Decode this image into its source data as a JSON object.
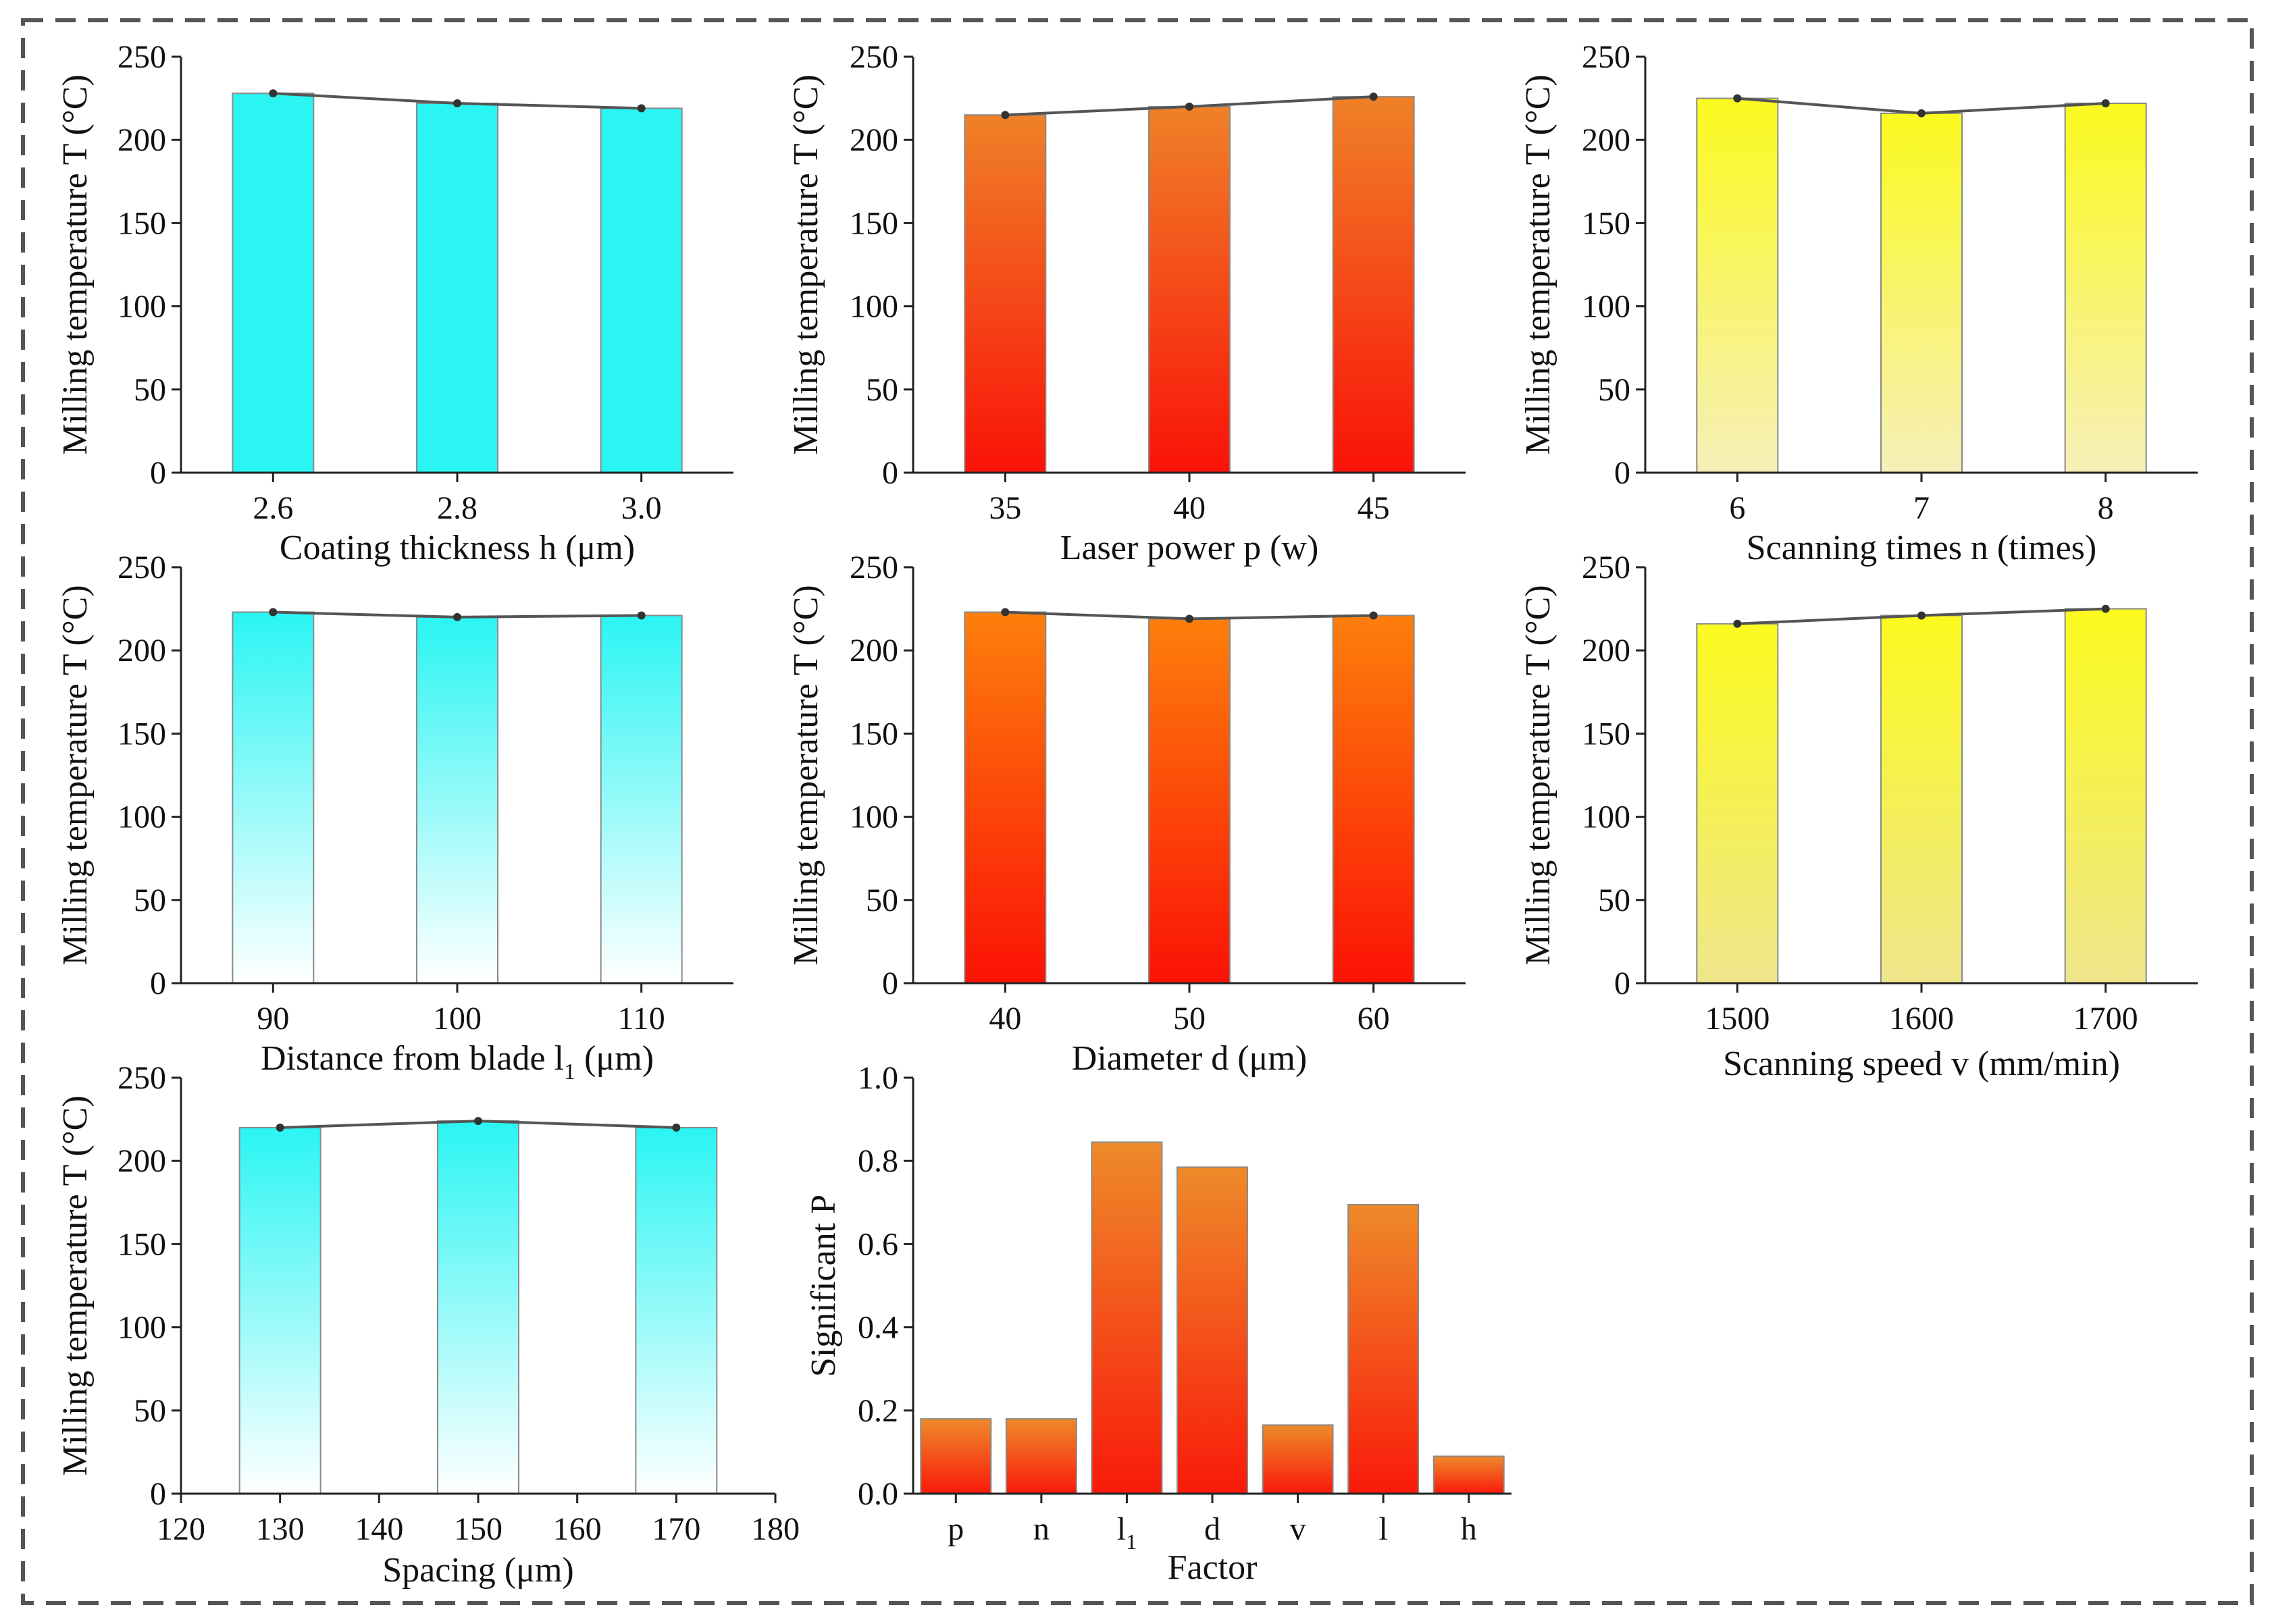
{
  "chart_data": [
    {
      "id": "coating",
      "type": "bar",
      "ylabel": "Milling temperature T (°C)",
      "xlabel_parts": [
        "Coating thickness h (μm)"
      ],
      "categories": [
        "2.6",
        "2.8",
        "3.0"
      ],
      "x": [
        2.6,
        2.8,
        3.0
      ],
      "values": [
        228,
        222,
        219
      ],
      "line": [
        228,
        222,
        219
      ],
      "ylim": [
        0,
        250
      ],
      "yticks": [
        0,
        50,
        100,
        150,
        200,
        250
      ],
      "style": "cyan_solid",
      "colors": {
        "top": "#2af5f3",
        "bottom": "#2af5f3",
        "border": "#8a8a8a",
        "line": "#555555"
      }
    },
    {
      "id": "laser",
      "type": "bar",
      "ylabel": "Milling temperature T (°C)",
      "xlabel_parts": [
        "Laser power p (w)"
      ],
      "categories": [
        "35",
        "40",
        "45"
      ],
      "x": [
        35,
        40,
        45
      ],
      "values": [
        215,
        220,
        226
      ],
      "line": [
        215,
        220,
        226
      ],
      "ylim": [
        0,
        250
      ],
      "yticks": [
        0,
        50,
        100,
        150,
        200,
        250
      ],
      "style": "orange_red",
      "colors": {
        "top": "#ef8128",
        "bottom": "#fa1208",
        "border": "#8a8a8a",
        "line": "#555555"
      }
    },
    {
      "id": "scan-times",
      "type": "bar",
      "ylabel": "Milling temperature T (°C)",
      "xlabel_parts": [
        "Scanning times n (times)"
      ],
      "categories": [
        "6",
        "7",
        "8"
      ],
      "x": [
        6,
        7,
        8
      ],
      "values": [
        225,
        216,
        222
      ],
      "line": [
        225,
        216,
        222
      ],
      "ylim": [
        0,
        250
      ],
      "yticks": [
        0,
        50,
        100,
        150,
        200,
        250
      ],
      "style": "yellow_fade",
      "colors": {
        "top": "#fbfa1f",
        "bottom": "#f6efb9",
        "border": "#8a8a8a",
        "line": "#555555"
      }
    },
    {
      "id": "distance",
      "type": "bar",
      "ylabel": "Milling temperature T (°C)",
      "xlabel_parts": [
        "Distance from blade l",
        "1",
        " (μm)"
      ],
      "categories": [
        "90",
        "100",
        "110"
      ],
      "x": [
        90,
        100,
        110
      ],
      "values": [
        223,
        220,
        221
      ],
      "line": [
        223,
        220,
        221
      ],
      "ylim": [
        0,
        250
      ],
      "yticks": [
        0,
        50,
        100,
        150,
        200,
        250
      ],
      "style": "cyan_fade",
      "colors": {
        "top": "#2af5f3",
        "bottom": "#ffffff",
        "border": "#8a8a8a",
        "line": "#555555"
      }
    },
    {
      "id": "diameter",
      "type": "bar",
      "ylabel": "Milling temperature T (°C)",
      "xlabel_parts": [
        "Diameter d (μm)"
      ],
      "categories": [
        "40",
        "50",
        "60"
      ],
      "x": [
        40,
        50,
        60
      ],
      "values": [
        223,
        219,
        221
      ],
      "line": [
        223,
        219,
        221
      ],
      "ylim": [
        0,
        250
      ],
      "yticks": [
        0,
        50,
        100,
        150,
        200,
        250
      ],
      "style": "orange_red",
      "colors": {
        "top": "#fd7f0c",
        "bottom": "#fb1206",
        "border": "#8a8a8a",
        "line": "#555555"
      }
    },
    {
      "id": "scan-speed",
      "type": "bar",
      "ylabel": "Milling temperature T (°C)",
      "xlabel_parts": [
        "Scanning speed v (mm/min)"
      ],
      "categories": [
        "1500",
        "1600",
        "1700"
      ],
      "x": [
        1500,
        1600,
        1700
      ],
      "values": [
        216,
        221,
        225
      ],
      "line": [
        216,
        221,
        225
      ],
      "ylim": [
        0,
        250
      ],
      "yticks": [
        0,
        50,
        100,
        150,
        200,
        250
      ],
      "style": "yellow_fade",
      "colors": {
        "top": "#fbfa1f",
        "bottom": "#efe68c",
        "border": "#8a8a8a",
        "line": "#555555"
      }
    },
    {
      "id": "spacing",
      "type": "bar",
      "ylabel": "Milling temperature T (°C)",
      "xlabel_parts": [
        "Spacing (μm)"
      ],
      "categories": [
        "120",
        "130",
        "140",
        "150",
        "160",
        "170",
        "180"
      ],
      "x": [
        130,
        150,
        170
      ],
      "values": [
        220,
        224,
        220
      ],
      "line": [
        220,
        224,
        220
      ],
      "xlim": [
        120,
        180
      ],
      "ylim": [
        0,
        250
      ],
      "yticks": [
        0,
        50,
        100,
        150,
        200,
        250
      ],
      "style": "cyan_fade",
      "colors": {
        "top": "#2af5f3",
        "bottom": "#ffffff",
        "border": "#8a8a8a",
        "line": "#555555"
      }
    },
    {
      "id": "significance",
      "type": "bar",
      "ylabel": "Significant P",
      "xlabel_parts": [
        "Factor"
      ],
      "categories": [
        "p",
        "n",
        "l",
        "d",
        "v",
        "l",
        "h"
      ],
      "category_subscripts": [
        "",
        "",
        "1",
        "",
        "",
        "",
        ""
      ],
      "values": [
        0.18,
        0.18,
        0.845,
        0.785,
        0.165,
        0.695,
        0.09
      ],
      "ylim": [
        0,
        1.0
      ],
      "yticks": [
        "0.0",
        "0.2",
        "0.4",
        "0.6",
        "0.8",
        "1.0"
      ],
      "style": "orange_red",
      "colors": {
        "top": "#ee8a2a",
        "bottom": "#f91a0a",
        "border": "#8a8a8a"
      }
    }
  ]
}
